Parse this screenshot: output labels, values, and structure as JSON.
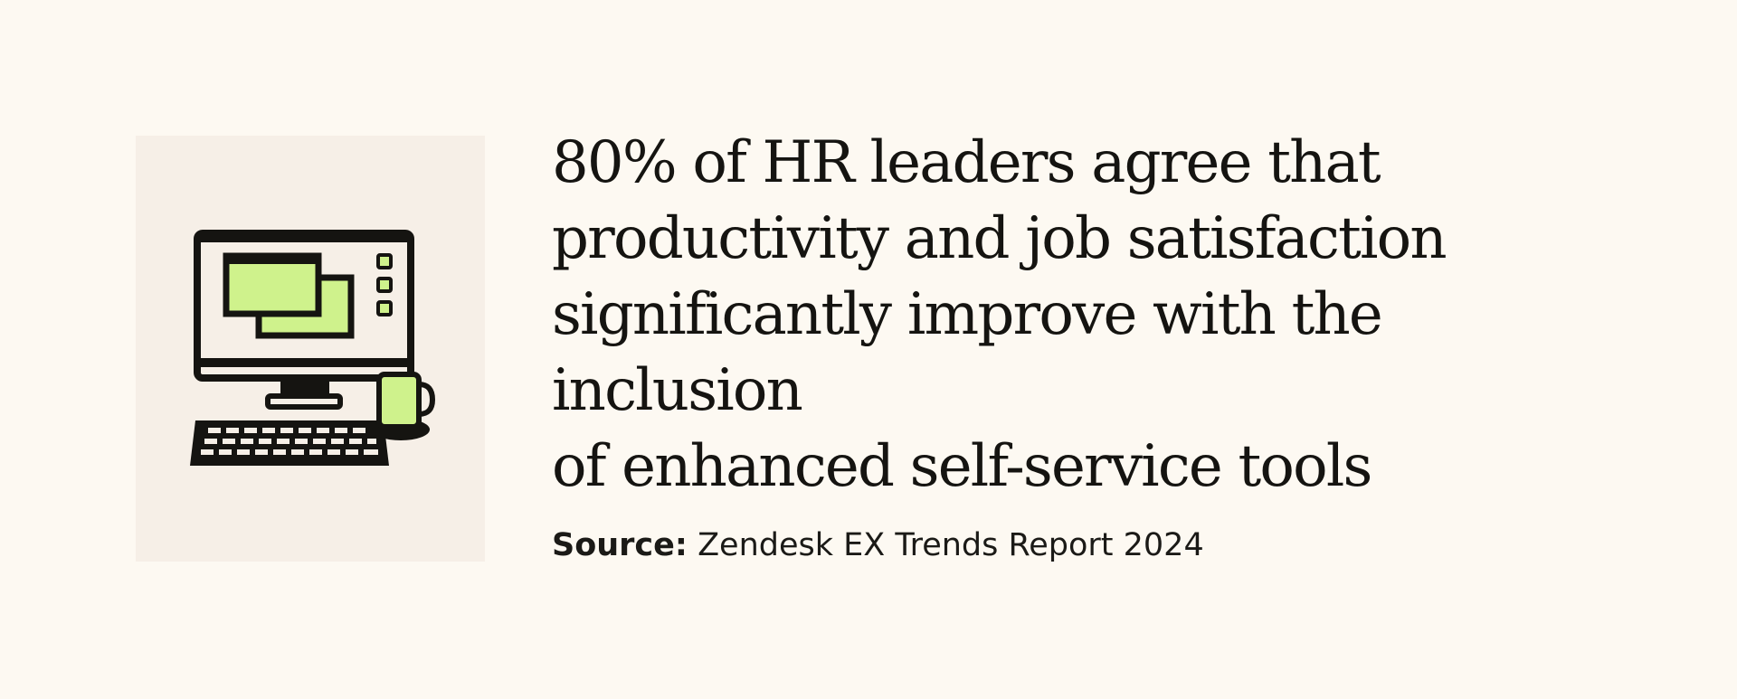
{
  "colors": {
    "background": "#fdf9f2",
    "panel": "#f6efe7",
    "ink": "#151411",
    "accent_green": "#cff28c"
  },
  "illustration": {
    "icons": [
      "desktop-computer-icon",
      "keyboard-icon",
      "coffee-mug-icon"
    ]
  },
  "headline": "80% of HR leaders agree that\nproductivity and job satisfaction\nsignificantly improve with the inclusion\nof enhanced self-service tools",
  "source": {
    "label": "Source:",
    "text": "Zendesk EX Trends Report 2024"
  }
}
